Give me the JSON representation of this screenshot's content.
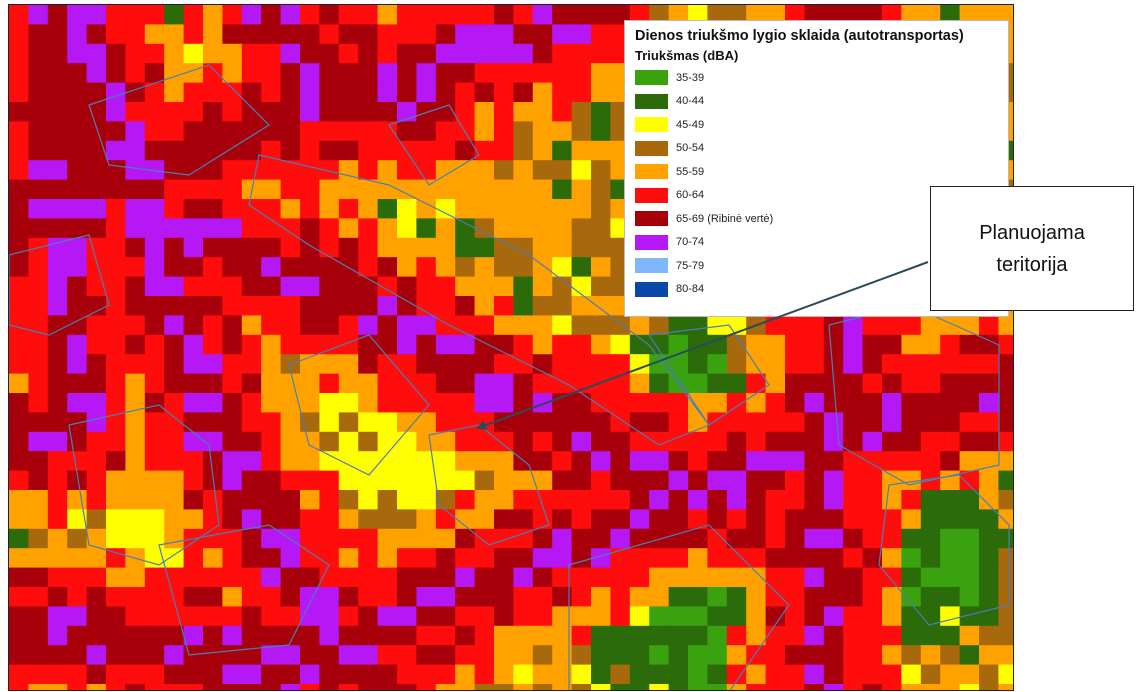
{
  "legend": {
    "title": "Dienos triukšmo lygio sklaida (autotransportas)",
    "subtitle": "Triukšmas (dBA)",
    "items": [
      {
        "label": "35-39",
        "color": "#3aa10f"
      },
      {
        "label": "40-44",
        "color": "#2b6b0a"
      },
      {
        "label": "45-49",
        "color": "#ffff00"
      },
      {
        "label": "50-54",
        "color": "#a8680c"
      },
      {
        "label": "55-59",
        "color": "#ffa200"
      },
      {
        "label": "60-64",
        "color": "#ff0c0c"
      },
      {
        "label": "65-69 (Ribinė vertė)",
        "color": "#a8000a"
      },
      {
        "label": "70-74",
        "color": "#b517f5"
      },
      {
        "label": "75-79",
        "color": "#7fb7f9"
      },
      {
        "label": "80-84",
        "color": "#0a47a8"
      }
    ]
  },
  "callout": {
    "line1": "Planuojama",
    "line2": "teritorija"
  },
  "colors": {
    "parcel_outline": "#4a7fb5",
    "arrow": "#2a4a5e"
  }
}
